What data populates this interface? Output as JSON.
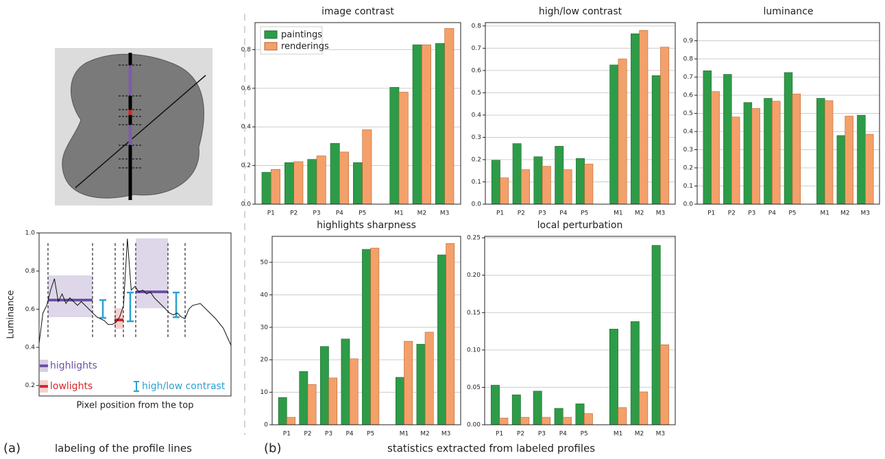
{
  "panel_a": {
    "label": "(a)",
    "caption": "labeling of the profile lines",
    "legend": {
      "highlights": "highlights",
      "lowlights": "lowlights",
      "contrast": "high/low contrast"
    }
  },
  "panel_b": {
    "label": "(b)",
    "caption": "statistics extracted from labeled profiles"
  },
  "chart_data": [
    {
      "type": "bar",
      "title": "image contrast",
      "categories": [
        "P1",
        "P2",
        "P3",
        "P4",
        "P5",
        "M1",
        "M2",
        "M3"
      ],
      "ylim": [
        0,
        0.94
      ],
      "yticks": [
        {
          "value": 0,
          "label": "0.0"
        },
        0.2,
        0.4,
        0.6,
        0.8
      ],
      "grid": true,
      "legend": "upper left",
      "series": [
        {
          "name": "paintings",
          "color": "#2e9b48",
          "values": [
            0.165,
            0.215,
            0.232,
            0.315,
            0.215,
            0.605,
            0.825,
            0.832
          ]
        },
        {
          "name": "renderings",
          "color": "#f4a06a",
          "values": [
            0.18,
            0.22,
            0.25,
            0.27,
            0.385,
            0.58,
            0.825,
            0.91
          ]
        }
      ]
    },
    {
      "type": "bar",
      "title": "high/low contrast",
      "categories": [
        "P1",
        "P2",
        "P3",
        "P4",
        "P5",
        "M1",
        "M2",
        "M3"
      ],
      "ylim": [
        0,
        0.815
      ],
      "yticks": [
        {
          "value": 0,
          "label": "0.0"
        },
        0.1,
        0.2,
        0.3,
        0.4,
        0.5,
        0.6,
        0.7,
        0.8
      ],
      "grid": true,
      "series": [
        {
          "color": "#2e9b48",
          "values": [
            0.197,
            0.272,
            0.213,
            0.26,
            0.205,
            0.625,
            0.765,
            0.577
          ]
        },
        {
          "color": "#f4a06a",
          "values": [
            0.118,
            0.155,
            0.17,
            0.155,
            0.18,
            0.652,
            0.78,
            0.705
          ]
        }
      ]
    },
    {
      "type": "bar",
      "title": "luminance",
      "categories": [
        "P1",
        "P2",
        "P3",
        "P4",
        "P5",
        "M1",
        "M2",
        "M3"
      ],
      "ylim": [
        0,
        1.0
      ],
      "yticks": [
        {
          "value": 0,
          "label": "0.0"
        },
        0.1,
        0.2,
        0.3,
        0.4,
        0.5,
        0.6,
        0.7,
        0.8,
        0.9
      ],
      "grid": true,
      "series": [
        {
          "color": "#2e9b48",
          "values": [
            0.735,
            0.715,
            0.56,
            0.583,
            0.725,
            0.583,
            0.378,
            0.49
          ]
        },
        {
          "color": "#f4a06a",
          "values": [
            0.62,
            0.48,
            0.527,
            0.567,
            0.607,
            0.57,
            0.485,
            0.385
          ]
        }
      ]
    },
    {
      "type": "bar",
      "title": "highlights sharpness",
      "categories": [
        "P1",
        "P2",
        "P3",
        "P4",
        "P5",
        "M1",
        "M2",
        "M3"
      ],
      "ylim": [
        0,
        58
      ],
      "yticks": [
        0,
        10,
        20,
        30,
        40,
        50
      ],
      "grid": true,
      "series": [
        {
          "color": "#2e9b48",
          "values": [
            8.4,
            16.4,
            24.1,
            26.4,
            54,
            14.6,
            24.8,
            52.3
          ]
        },
        {
          "color": "#f4a06a",
          "values": [
            2.3,
            12.4,
            14.4,
            20.3,
            54.4,
            25.7,
            28.5,
            55.8
          ]
        }
      ]
    },
    {
      "type": "bar",
      "title": "local perturbation",
      "categories": [
        "P1",
        "P2",
        "P3",
        "P4",
        "P5",
        "M1",
        "M2",
        "M3"
      ],
      "ylim": [
        0,
        0.252
      ],
      "yticks": [
        {
          "value": 0,
          "label": "0.00"
        },
        {
          "value": 0.05,
          "label": "0.05"
        },
        {
          "value": 0.1,
          "label": "0.10"
        },
        {
          "value": 0.15,
          "label": "0.15"
        },
        {
          "value": 0.2,
          "label": "0.20"
        },
        {
          "value": 0.25,
          "label": "0.25"
        }
      ],
      "grid": true,
      "series": [
        {
          "color": "#2e9b48",
          "values": [
            0.053,
            0.04,
            0.045,
            0.022,
            0.028,
            0.128,
            0.138,
            0.24
          ]
        },
        {
          "color": "#f4a06a",
          "values": [
            0.009,
            0.01,
            0.01,
            0.01,
            0.015,
            0.023,
            0.044,
            0.107
          ]
        }
      ]
    },
    {
      "type": "line",
      "ylabel": "Luminance",
      "xlabel": "Pixel position from the top",
      "color": "#111",
      "xlim": [
        0,
        100
      ],
      "ylim": [
        0.145,
        1.0
      ],
      "yticks": [
        0.2,
        0.4,
        0.6,
        0.8,
        {
          "value": 1,
          "label": "1.0"
        }
      ],
      "x": [
        0,
        2,
        4,
        6,
        8,
        10,
        12,
        14,
        16,
        18,
        20,
        22,
        24,
        26,
        28,
        30,
        32,
        34,
        36,
        38,
        40,
        42,
        44,
        46,
        48,
        50,
        52,
        54,
        56,
        58,
        60,
        62,
        64,
        66,
        68,
        70,
        72,
        74,
        76,
        78,
        80,
        84,
        88,
        92,
        96,
        100
      ],
      "values": [
        0.42,
        0.58,
        0.62,
        0.7,
        0.76,
        0.64,
        0.68,
        0.63,
        0.66,
        0.64,
        0.62,
        0.64,
        0.62,
        0.6,
        0.58,
        0.56,
        0.55,
        0.54,
        0.52,
        0.52,
        0.53,
        0.56,
        0.62,
        0.97,
        0.7,
        0.72,
        0.69,
        0.7,
        0.68,
        0.69,
        0.66,
        0.64,
        0.62,
        0.6,
        0.58,
        0.57,
        0.58,
        0.56,
        0.55,
        0.6,
        0.62,
        0.63,
        0.59,
        0.55,
        0.5,
        0.41
      ]
    }
  ]
}
